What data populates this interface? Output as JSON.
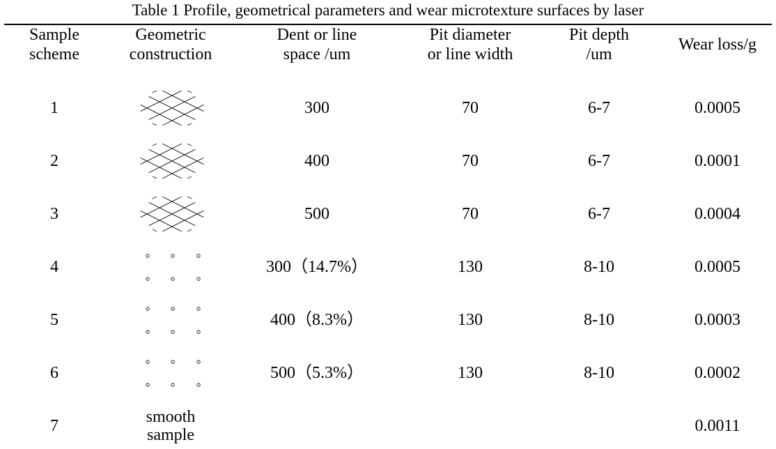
{
  "title": "Table 1 Profile, geometrical parameters and wear microtexture surfaces by laser",
  "header": [
    [
      "Sample",
      "scheme"
    ],
    [
      "Geometric",
      "construction"
    ],
    [
      "Dent or line",
      "space /um"
    ],
    [
      "Pit diameter",
      "or line width"
    ],
    [
      "Pit depth",
      "/um"
    ],
    [
      "Wear loss/g"
    ]
  ],
  "rows": [
    {
      "scheme": "1",
      "space": "300",
      "diameter": "70",
      "depth": "6-7",
      "wear": "0.0005"
    },
    {
      "scheme": "2",
      "space": "400",
      "diameter": "70",
      "depth": "6-7",
      "wear": "0.0001"
    },
    {
      "scheme": "3",
      "space": "500",
      "diameter": "70",
      "depth": "6-7",
      "wear": "0.0004"
    },
    {
      "scheme": "4",
      "space": "300（14.7%）",
      "diameter": "130",
      "depth": "8-10",
      "wear": "0.0005"
    },
    {
      "scheme": "5",
      "space": "400（8.3%）",
      "diameter": "130",
      "depth": "8-10",
      "wear": "0.0003"
    },
    {
      "scheme": "6",
      "space": "500（5.3%）",
      "diameter": "130",
      "depth": "8-10",
      "wear": "0.0002"
    },
    {
      "scheme": "7",
      "construction": "smooth sample",
      "wear": "0.0011"
    }
  ]
}
